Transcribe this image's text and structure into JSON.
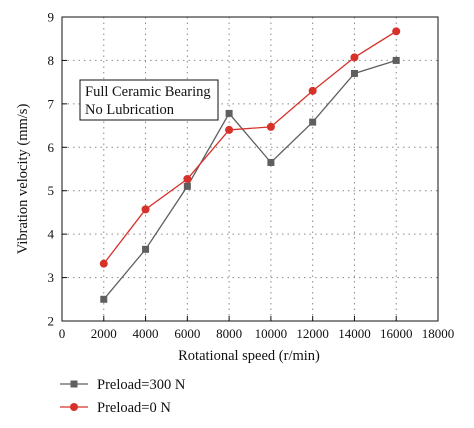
{
  "chart_data": {
    "type": "line",
    "xlabel": "Rotational speed (r/min)",
    "ylabel": "Vibration velocity (mm/s)",
    "xlim": [
      0,
      18000
    ],
    "ylim": [
      2,
      9
    ],
    "x_ticks": [
      0,
      2000,
      4000,
      6000,
      8000,
      10000,
      12000,
      14000,
      16000,
      18000
    ],
    "y_ticks": [
      2,
      3,
      4,
      5,
      6,
      7,
      8,
      9
    ],
    "grid": "dotted",
    "annotation": [
      "Full Ceramic Bearing",
      "No Lubrication"
    ],
    "legend_position": "bottom-left, below plot",
    "series": [
      {
        "name": "Preload=300 N",
        "color": "#5f5f5f",
        "marker": "square",
        "x": [
          2000,
          4000,
          6000,
          8000,
          10000,
          12000,
          14000,
          16000
        ],
        "values": [
          2.5,
          3.65,
          5.1,
          6.78,
          5.65,
          6.58,
          7.7,
          8.0
        ]
      },
      {
        "name": "Preload=0 N",
        "color": "#d6322a",
        "marker": "circle",
        "x": [
          2000,
          4000,
          6000,
          8000,
          10000,
          12000,
          14000,
          16000
        ],
        "values": [
          3.32,
          4.57,
          5.27,
          6.4,
          6.47,
          7.3,
          8.07,
          8.67
        ]
      }
    ]
  }
}
